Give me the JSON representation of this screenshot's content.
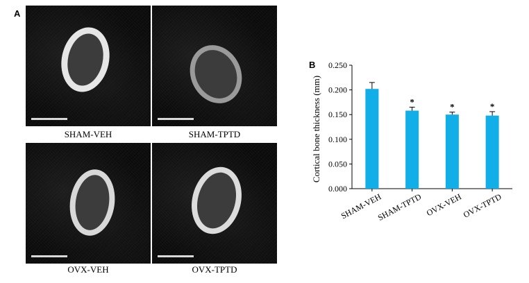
{
  "panel_a": {
    "letter": "A",
    "images": [
      {
        "caption": "SHAM-VEH"
      },
      {
        "caption": "SHAM-TPTD"
      },
      {
        "caption": "OVX-VEH"
      },
      {
        "caption": "OVX-TPTD"
      }
    ]
  },
  "panel_b": {
    "letter": "B"
  },
  "chart_data": {
    "type": "bar",
    "title": "",
    "xlabel": "",
    "ylabel": "Cortical bone thickness (mm)",
    "categories": [
      "SHAM-VEH",
      "SHAM-TPTD",
      "OVX-VEH",
      "OVX-TPTD"
    ],
    "values": [
      0.202,
      0.158,
      0.15,
      0.148
    ],
    "errors": [
      0.013,
      0.007,
      0.005,
      0.008
    ],
    "significance": [
      "",
      "*",
      "*",
      "*"
    ],
    "ylim": [
      0,
      0.25
    ],
    "yticks": [
      "0.000",
      "0.050",
      "0.100",
      "0.150",
      "0.200",
      "0.250"
    ],
    "bar_color": "#12aee8",
    "grid": false,
    "legend": "none"
  }
}
